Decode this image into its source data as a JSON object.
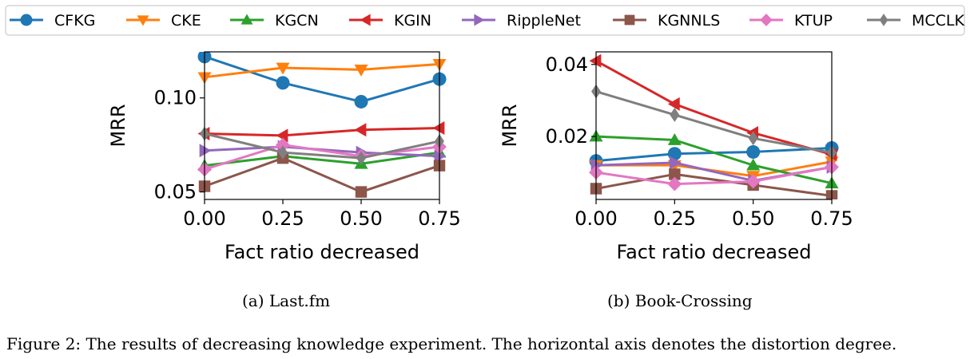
{
  "legend": [
    {
      "name": "CFKG",
      "color": "#1f77b4",
      "marker": "circle"
    },
    {
      "name": "CKE",
      "color": "#ff7f0e",
      "marker": "triangle-down"
    },
    {
      "name": "KGCN",
      "color": "#2ca02c",
      "marker": "triangle-up"
    },
    {
      "name": "KGIN",
      "color": "#d62728",
      "marker": "triangle-left"
    },
    {
      "name": "RippleNet",
      "color": "#9467bd",
      "marker": "triangle-right"
    },
    {
      "name": "KGNNLS",
      "color": "#8c564b",
      "marker": "square"
    },
    {
      "name": "KTUP",
      "color": "#e377c2",
      "marker": "diamond"
    },
    {
      "name": "MCCLK",
      "color": "#7f7f7f",
      "marker": "thin-diamond"
    }
  ],
  "captions": {
    "a": "(a) Last.fm",
    "b": "(b) Book-Crossing",
    "figure": "Figure 2: The results of decreasing knowledge experiment. The horizontal axis denotes the distortion degree."
  },
  "chart_data": [
    {
      "type": "line",
      "xlabel": "Fact ratio decreased",
      "ylabel": "MRR",
      "x": [
        0.0,
        0.25,
        0.5,
        0.75
      ],
      "xticks": [
        "0.00",
        "0.25",
        "0.50",
        "0.75"
      ],
      "ylim": [
        0.046,
        0.1245
      ],
      "yticks": [
        {
          "v": 0.05,
          "label": "0.05"
        },
        {
          "v": 0.1,
          "label": "0.10"
        }
      ],
      "series": [
        {
          "name": "CFKG",
          "values": [
            0.122,
            0.108,
            0.098,
            0.11
          ]
        },
        {
          "name": "CKE",
          "values": [
            0.111,
            0.116,
            0.115,
            0.118
          ]
        },
        {
          "name": "KGCN",
          "values": [
            0.064,
            0.069,
            0.065,
            0.071
          ]
        },
        {
          "name": "KGIN",
          "values": [
            0.081,
            0.08,
            0.083,
            0.084
          ]
        },
        {
          "name": "RippleNet",
          "values": [
            0.072,
            0.074,
            0.071,
            0.069
          ]
        },
        {
          "name": "KGNNLS",
          "values": [
            0.053,
            0.068,
            0.05,
            0.064
          ]
        },
        {
          "name": "KTUP",
          "values": [
            0.062,
            0.075,
            0.069,
            0.074
          ]
        },
        {
          "name": "MCCLK",
          "values": [
            0.081,
            0.071,
            0.068,
            0.077
          ]
        }
      ]
    },
    {
      "type": "line",
      "xlabel": "Fact ratio decreased",
      "ylabel": "MRR",
      "x": [
        0.0,
        0.25,
        0.5,
        0.75
      ],
      "xticks": [
        "0.00",
        "0.25",
        "0.50",
        "0.75"
      ],
      "ylim": [
        0.0025,
        0.0435
      ],
      "yticks": [
        {
          "v": 0.02,
          "label": "0.02"
        },
        {
          "v": 0.04,
          "label": "0.04"
        }
      ],
      "series": [
        {
          "name": "CFKG",
          "values": [
            0.0132,
            0.0152,
            0.0157,
            0.0168
          ]
        },
        {
          "name": "CKE",
          "values": [
            0.012,
            0.012,
            0.009,
            0.013
          ]
        },
        {
          "name": "KGCN",
          "values": [
            0.02,
            0.019,
            0.012,
            0.007
          ]
        },
        {
          "name": "KGIN",
          "values": [
            0.041,
            0.029,
            0.021,
            0.015
          ]
        },
        {
          "name": "RippleNet",
          "values": [
            0.012,
            0.0127,
            0.0077,
            0.0115
          ]
        },
        {
          "name": "KGNNLS",
          "values": [
            0.0055,
            0.0095,
            0.0065,
            0.0035
          ]
        },
        {
          "name": "KTUP",
          "values": [
            0.01,
            0.0068,
            0.0075,
            0.0115
          ]
        },
        {
          "name": "MCCLK",
          "values": [
            0.0325,
            0.026,
            0.0195,
            0.0155
          ]
        }
      ]
    }
  ]
}
